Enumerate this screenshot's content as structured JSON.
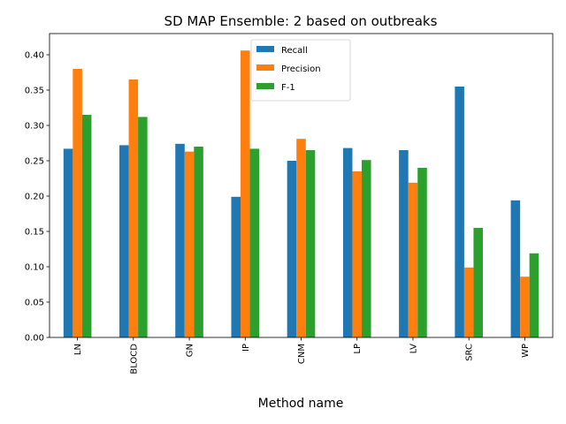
{
  "chart_data": {
    "type": "bar",
    "title": "SD MAP Ensemble: 2 based on outbreaks",
    "xlabel": "Method name",
    "ylabel": "",
    "ylim": [
      0,
      0.43
    ],
    "yticks": [
      0.0,
      0.05,
      0.1,
      0.15,
      0.2,
      0.25,
      0.3,
      0.35,
      0.4
    ],
    "yticks_labels": [
      "0.00",
      "0.05",
      "0.10",
      "0.15",
      "0.20",
      "0.25",
      "0.30",
      "0.35",
      "0.40"
    ],
    "categories": [
      "LN",
      "BLOCD",
      "GN",
      "IP",
      "CNM",
      "LP",
      "LV",
      "SRC",
      "WP"
    ],
    "grid": false,
    "legend_position": "top-center",
    "series": [
      {
        "name": "Recall",
        "color": "#1f77b4",
        "values": [
          0.267,
          0.272,
          0.274,
          0.199,
          0.25,
          0.268,
          0.265,
          0.355,
          0.194
        ]
      },
      {
        "name": "Precision",
        "color": "#ff7f0e",
        "values": [
          0.38,
          0.365,
          0.263,
          0.406,
          0.281,
          0.235,
          0.219,
          0.099,
          0.086
        ]
      },
      {
        "name": "F-1",
        "color": "#2ca02c",
        "values": [
          0.315,
          0.312,
          0.27,
          0.267,
          0.265,
          0.251,
          0.24,
          0.155,
          0.119
        ]
      }
    ]
  }
}
